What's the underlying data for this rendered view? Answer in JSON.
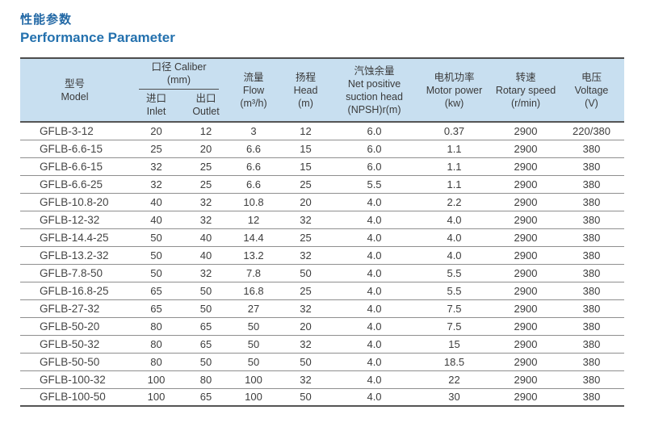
{
  "title_zh": "性能参数",
  "title_en": "Performance Parameter",
  "colors": {
    "title_blue": "#2268a5",
    "header_bg": "#c8dff0",
    "border_dark": "#4d4d4d",
    "row_line": "#8f8f8f",
    "cell_text": "#3d3d3d"
  },
  "table": {
    "columns": {
      "model": {
        "zh": "型号",
        "en": "Model"
      },
      "caliber": {
        "zh_en": "口径 Caliber",
        "unit": "(mm)"
      },
      "inlet": {
        "zh": "进口",
        "en": "Inlet"
      },
      "outlet": {
        "zh": "出口",
        "en": "Outlet"
      },
      "flow": {
        "zh": "流量",
        "en": "Flow",
        "unit": "(m³/h)"
      },
      "head": {
        "zh": "扬程",
        "en": "Head",
        "unit": "(m)"
      },
      "npsh": {
        "zh": "汽蚀余量",
        "en1": "Net positive",
        "en2": "suction head",
        "unit": "(NPSH)r(m)"
      },
      "power": {
        "zh": "电机功率",
        "en": "Motor power",
        "unit": "(kw)"
      },
      "speed": {
        "zh": "转速",
        "en": "Rotary speed",
        "unit": "(r/min)"
      },
      "voltage": {
        "zh": "电压",
        "en": "Voltage",
        "unit": "(V)"
      }
    },
    "rows": [
      [
        "GFLB-3-12",
        "20",
        "12",
        "3",
        "12",
        "6.0",
        "0.37",
        "2900",
        "220/380"
      ],
      [
        "GFLB-6.6-15",
        "25",
        "20",
        "6.6",
        "15",
        "6.0",
        "1.1",
        "2900",
        "380"
      ],
      [
        "GFLB-6.6-15",
        "32",
        "25",
        "6.6",
        "15",
        "6.0",
        "1.1",
        "2900",
        "380"
      ],
      [
        "GFLB-6.6-25",
        "32",
        "25",
        "6.6",
        "25",
        "5.5",
        "1.1",
        "2900",
        "380"
      ],
      [
        "GFLB-10.8-20",
        "40",
        "32",
        "10.8",
        "20",
        "4.0",
        "2.2",
        "2900",
        "380"
      ],
      [
        "GFLB-12-32",
        "40",
        "32",
        "12",
        "32",
        "4.0",
        "4.0",
        "2900",
        "380"
      ],
      [
        "GFLB-14.4-25",
        "50",
        "40",
        "14.4",
        "25",
        "4.0",
        "4.0",
        "2900",
        "380"
      ],
      [
        "GFLB-13.2-32",
        "50",
        "40",
        "13.2",
        "32",
        "4.0",
        "4.0",
        "2900",
        "380"
      ],
      [
        "GFLB-7.8-50",
        "50",
        "32",
        "7.8",
        "50",
        "4.0",
        "5.5",
        "2900",
        "380"
      ],
      [
        "GFLB-16.8-25",
        "65",
        "50",
        "16.8",
        "25",
        "4.0",
        "5.5",
        "2900",
        "380"
      ],
      [
        "GFLB-27-32",
        "65",
        "50",
        "27",
        "32",
        "4.0",
        "7.5",
        "2900",
        "380"
      ],
      [
        "GFLB-50-20",
        "80",
        "65",
        "50",
        "20",
        "4.0",
        "7.5",
        "2900",
        "380"
      ],
      [
        "GFLB-50-32",
        "80",
        "65",
        "50",
        "32",
        "4.0",
        "15",
        "2900",
        "380"
      ],
      [
        "GFLB-50-50",
        "80",
        "50",
        "50",
        "50",
        "4.0",
        "18.5",
        "2900",
        "380"
      ],
      [
        "GFLB-100-32",
        "100",
        "80",
        "100",
        "32",
        "4.0",
        "22",
        "2900",
        "380"
      ],
      [
        "GFLB-100-50",
        "100",
        "65",
        "100",
        "50",
        "4.0",
        "30",
        "2900",
        "380"
      ]
    ]
  }
}
